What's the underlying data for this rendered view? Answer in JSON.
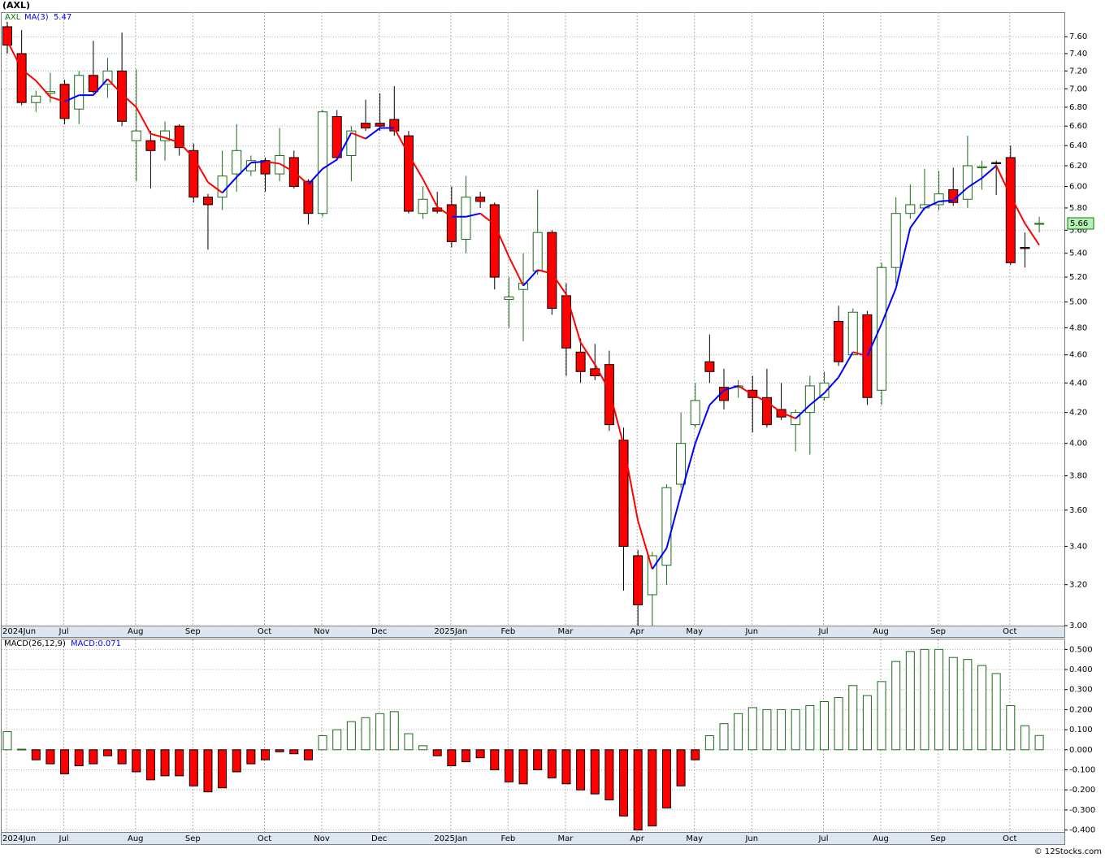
{
  "chart_data": [
    {
      "type": "candlestick",
      "title": "(AXL)",
      "log_scale": true,
      "grid": true,
      "categories": [
        "2024Jun",
        null,
        null,
        null,
        "Jul",
        null,
        null,
        null,
        null,
        "Aug",
        null,
        null,
        null,
        "Sep",
        null,
        null,
        null,
        null,
        "Oct",
        null,
        null,
        null,
        "Nov",
        null,
        null,
        null,
        "Dec",
        null,
        null,
        null,
        null,
        "2025Jan",
        null,
        null,
        null,
        "Feb",
        null,
        null,
        null,
        "Mar",
        null,
        null,
        null,
        null,
        "Apr",
        null,
        null,
        null,
        "May",
        null,
        null,
        null,
        "Jun",
        null,
        null,
        null,
        null,
        "Jul",
        null,
        null,
        null,
        "Aug",
        null,
        null,
        null,
        "Sep",
        null,
        null,
        null,
        null,
        "Oct",
        null,
        null
      ],
      "series": [
        {
          "name": "AXL",
          "color": "#008000",
          "up_color": "#1a6b1a",
          "down_color": "#ff0000",
          "open": [
            7.72,
            7.4,
            6.85,
            6.95,
            7.05,
            6.78,
            7.15,
            7.05,
            7.2,
            6.45,
            6.45,
            6.45,
            6.6,
            6.35,
            5.9,
            5.9,
            6.12,
            6.15,
            6.25,
            6.12,
            6.28,
            6.05,
            5.75,
            6.7,
            6.3,
            6.63,
            6.63,
            6.67,
            6.5,
            5.75,
            5.8,
            5.83,
            5.52,
            5.9,
            5.83,
            5.02,
            5.1,
            5.25,
            5.58,
            5.05,
            4.62,
            4.5,
            4.53,
            4.02,
            3.35,
            3.15,
            3.3,
            3.75,
            4.12,
            4.55,
            4.37,
            4.37,
            4.35,
            4.3,
            4.22,
            4.12,
            4.2,
            4.3,
            4.85,
            4.6,
            4.9,
            4.35,
            5.28,
            5.75,
            5.8,
            5.83,
            5.97,
            5.88,
            6.18,
            6.23,
            6.28,
            5.45,
            5.66
          ],
          "high": [
            7.78,
            7.68,
            6.98,
            7.18,
            7.1,
            7.2,
            7.55,
            7.35,
            7.65,
            7.22,
            6.55,
            6.65,
            6.62,
            6.42,
            5.93,
            6.35,
            6.62,
            6.3,
            6.28,
            6.58,
            6.35,
            6.07,
            6.77,
            6.77,
            6.6,
            6.88,
            6.95,
            7.03,
            6.55,
            6.0,
            5.95,
            6.0,
            6.1,
            5.95,
            5.85,
            5.2,
            5.4,
            5.97,
            5.6,
            5.15,
            4.72,
            4.68,
            4.63,
            4.1,
            3.38,
            3.37,
            3.75,
            4.2,
            4.4,
            4.75,
            4.5,
            4.42,
            4.45,
            4.5,
            4.4,
            4.22,
            4.45,
            4.48,
            4.97,
            4.95,
            4.93,
            5.32,
            5.9,
            6.02,
            6.17,
            6.15,
            6.18,
            6.5,
            6.25,
            6.25,
            6.4,
            5.58,
            5.72
          ],
          "low": [
            7.4,
            6.82,
            6.75,
            6.85,
            6.62,
            6.62,
            6.95,
            6.9,
            6.6,
            6.05,
            5.98,
            6.25,
            6.3,
            5.85,
            5.43,
            5.78,
            5.95,
            6.1,
            5.95,
            6.05,
            5.98,
            5.65,
            5.72,
            6.25,
            6.05,
            6.55,
            6.55,
            6.5,
            5.75,
            5.7,
            5.75,
            5.45,
            5.4,
            5.8,
            5.1,
            4.8,
            4.7,
            5.22,
            4.9,
            4.45,
            4.4,
            4.42,
            4.08,
            3.17,
            3.0,
            3.0,
            3.2,
            3.73,
            4.1,
            4.4,
            4.22,
            4.3,
            4.07,
            4.1,
            4.15,
            3.95,
            3.93,
            4.28,
            4.52,
            4.6,
            4.25,
            4.25,
            5.15,
            5.7,
            5.78,
            5.78,
            5.82,
            5.8,
            5.97,
            5.92,
            5.3,
            5.28,
            5.58
          ],
          "close": [
            7.5,
            6.85,
            6.92,
            6.97,
            6.68,
            7.15,
            6.97,
            7.2,
            6.65,
            6.55,
            6.35,
            6.55,
            6.38,
            5.9,
            5.83,
            6.1,
            6.35,
            6.25,
            6.12,
            6.3,
            6.0,
            5.75,
            6.75,
            6.28,
            6.55,
            6.58,
            6.6,
            6.55,
            5.77,
            5.88,
            5.77,
            5.5,
            5.9,
            5.86,
            5.2,
            5.04,
            5.15,
            5.58,
            4.95,
            4.65,
            4.48,
            4.45,
            4.12,
            3.4,
            3.1,
            3.35,
            3.73,
            4.0,
            4.28,
            4.48,
            4.28,
            4.38,
            4.3,
            4.12,
            4.17,
            4.2,
            4.38,
            4.4,
            4.55,
            4.92,
            4.3,
            5.28,
            5.75,
            5.83,
            5.83,
            5.93,
            5.85,
            6.2,
            6.19,
            6.22,
            5.32,
            5.44,
            5.66
          ]
        }
      ],
      "ma": {
        "name": "MA(3)",
        "up_color": "#0000ff",
        "down_color": "#ff0000",
        "values": [
          7.55,
          7.22,
          7.09,
          6.91,
          6.86,
          6.93,
          6.93,
          7.11,
          6.94,
          6.8,
          6.52,
          6.48,
          6.43,
          6.28,
          6.04,
          5.94,
          6.09,
          6.23,
          6.24,
          6.22,
          6.14,
          6.02,
          6.17,
          6.26,
          6.53,
          6.47,
          6.58,
          6.58,
          6.31,
          6.07,
          5.81,
          5.72,
          5.72,
          5.75,
          5.65,
          5.37,
          5.13,
          5.26,
          5.23,
          5.06,
          4.69,
          4.53,
          4.35,
          3.99,
          3.54,
          3.28,
          3.39,
          3.69,
          4.0,
          4.25,
          4.35,
          4.38,
          4.32,
          4.27,
          4.2,
          4.16,
          4.25,
          4.33,
          4.44,
          4.62,
          4.59,
          4.83,
          5.11,
          5.62,
          5.8,
          5.86,
          5.87,
          5.99,
          6.08,
          6.2,
          5.91,
          5.66,
          5.47
        ]
      },
      "ylim": [
        3.0,
        7.9
      ],
      "yticks": [
        {
          "value": 3.0,
          "label": "3.00"
        },
        {
          "value": 3.2,
          "label": "3.20"
        },
        {
          "value": 3.4,
          "label": "3.40"
        },
        {
          "value": 3.6,
          "label": "3.60"
        },
        {
          "value": 3.8,
          "label": "3.80"
        },
        {
          "value": 4.0,
          "label": "4.00"
        },
        {
          "value": 4.2,
          "label": "4.20"
        },
        {
          "value": 4.4,
          "label": "4.40"
        },
        {
          "value": 4.6,
          "label": "4.60"
        },
        {
          "value": 4.8,
          "label": "4.80"
        },
        {
          "value": 5.0,
          "label": "5.00"
        },
        {
          "value": 5.2,
          "label": "5.20"
        },
        {
          "value": 5.4,
          "label": "5.40"
        },
        {
          "value": 5.6,
          "label": "5.60"
        },
        {
          "value": 5.8,
          "label": "5.80"
        },
        {
          "value": 6.0,
          "label": "6.00"
        },
        {
          "value": 6.2,
          "label": "6.20"
        },
        {
          "value": 6.4,
          "label": "6.40"
        },
        {
          "value": 6.6,
          "label": "6.60"
        },
        {
          "value": 6.8,
          "label": "6.80"
        },
        {
          "value": 7.0,
          "label": "7.00"
        },
        {
          "value": 7.2,
          "label": "7.20"
        },
        {
          "value": 7.4,
          "label": "7.40"
        },
        {
          "value": 7.6,
          "label": "7.60"
        }
      ]
    },
    {
      "type": "bar",
      "title": "MACD(26,12,9)",
      "legend": "MACD:0.071",
      "grid": true,
      "pos_color": "#1a6b1a",
      "neg_color": "#ff0000",
      "values": [
        0.09,
        0.003,
        -0.05,
        -0.07,
        -0.12,
        -0.08,
        -0.07,
        -0.03,
        -0.07,
        -0.11,
        -0.15,
        -0.13,
        -0.13,
        -0.18,
        -0.21,
        -0.19,
        -0.11,
        -0.07,
        -0.05,
        -0.01,
        -0.02,
        -0.05,
        0.07,
        0.1,
        0.14,
        0.16,
        0.18,
        0.19,
        0.08,
        0.02,
        -0.03,
        -0.08,
        -0.06,
        -0.04,
        -0.1,
        -0.16,
        -0.17,
        -0.1,
        -0.14,
        -0.17,
        -0.2,
        -0.22,
        -0.25,
        -0.33,
        -0.4,
        -0.38,
        -0.29,
        -0.18,
        -0.05,
        0.07,
        0.13,
        0.18,
        0.21,
        0.2,
        0.2,
        0.2,
        0.22,
        0.24,
        0.26,
        0.32,
        0.27,
        0.34,
        0.44,
        0.49,
        0.5,
        0.5,
        0.46,
        0.45,
        0.42,
        0.38,
        0.22,
        0.12,
        0.071
      ],
      "ylim": [
        -0.41,
        0.55
      ],
      "yticks": [
        {
          "value": -0.4,
          "label": "-0.400"
        },
        {
          "value": -0.3,
          "label": "-0.300"
        },
        {
          "value": -0.2,
          "label": "-0.200"
        },
        {
          "value": -0.1,
          "label": "-0.100"
        },
        {
          "value": 0,
          "label": "0.000"
        },
        {
          "value": 0.1,
          "label": "0.100"
        },
        {
          "value": 0.2,
          "label": "0.200"
        },
        {
          "value": 0.3,
          "label": "0.300"
        },
        {
          "value": 0.4,
          "label": "0.400"
        },
        {
          "value": 0.5,
          "label": "0.500"
        }
      ]
    }
  ],
  "footer": "© 12Stocks.com"
}
